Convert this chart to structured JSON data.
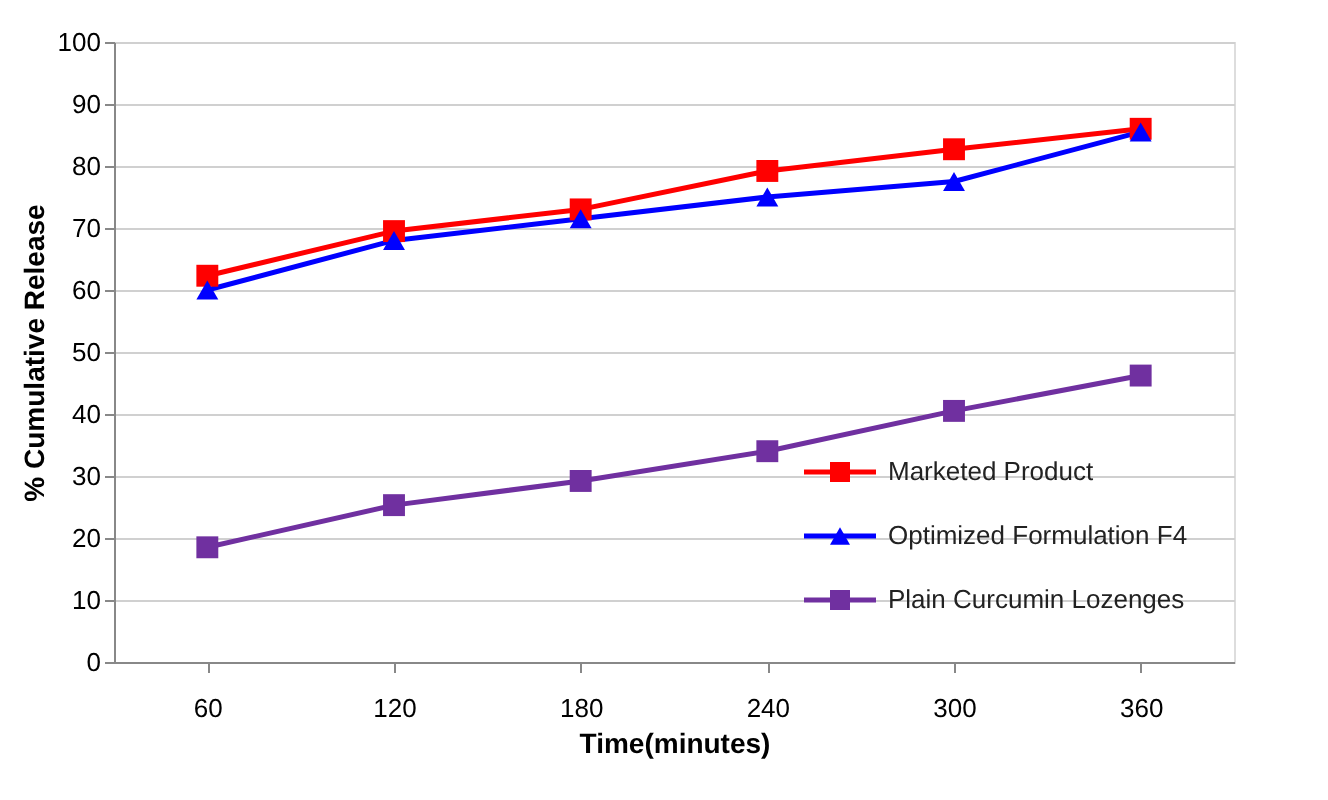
{
  "chart_data": {
    "type": "line",
    "xlabel": "Time(minutes)",
    "ylabel": "% Cumulative Release",
    "categories": [
      "60",
      "120",
      "180",
      "240",
      "300",
      "360"
    ],
    "series": [
      {
        "name": "Marketed Product",
        "color": "#ff0000",
        "marker": "square",
        "values": [
          62.3,
          69.5,
          73,
          79.2,
          82.7,
          86
        ]
      },
      {
        "name": "Optimized Formulation F4",
        "color": "#0000ff",
        "marker": "triangle",
        "values": [
          60,
          68,
          71.5,
          75,
          77.5,
          85.5
        ]
      },
      {
        "name": "Plain Curcumin Lozenges",
        "color": "#7030a0",
        "marker": "square",
        "values": [
          18.5,
          25.3,
          29.2,
          34,
          40.5,
          46.2
        ]
      }
    ],
    "ylim": [
      0,
      100
    ],
    "yticks": [
      0,
      10,
      20,
      30,
      40,
      50,
      60,
      70,
      80,
      90,
      100
    ],
    "grid": "y",
    "legend": "bottom right",
    "line_style": "solid"
  }
}
